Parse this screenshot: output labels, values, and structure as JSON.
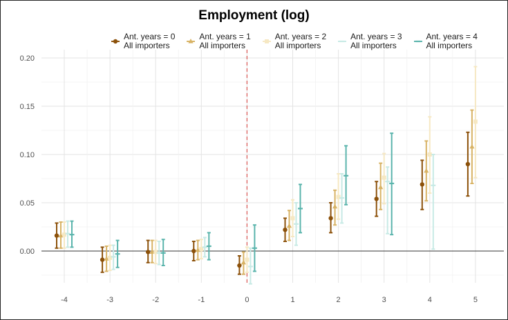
{
  "chart_data": {
    "type": "errorbar",
    "title": "Employment (log)",
    "xlabel": "",
    "ylabel": "",
    "x_ticks": [
      "-4",
      "-3",
      "-2",
      "-1",
      "0",
      "1",
      "2",
      "3",
      "4",
      "5"
    ],
    "y_ticks": [
      "0.00",
      "0.05",
      "0.10",
      "0.15",
      "0.20"
    ],
    "ylim": [
      -0.035,
      0.2
    ],
    "grid": true,
    "legend_position": "top",
    "reference_lines": {
      "horizontal_y": 0,
      "vertical_x": 0
    },
    "series": [
      {
        "name_line1": "Ant. years = 0",
        "name_line2": "All importers",
        "color": "#8c510a",
        "marker": "circle",
        "points": [
          {
            "x": -4,
            "y": 0.016,
            "lo": 0.003,
            "hi": 0.029
          },
          {
            "x": -3,
            "y": -0.009,
            "lo": -0.022,
            "hi": 0.004
          },
          {
            "x": -2,
            "y": -0.001,
            "lo": -0.012,
            "hi": 0.011
          },
          {
            "x": -1,
            "y": 0.0,
            "lo": -0.01,
            "hi": 0.01
          },
          {
            "x": 0,
            "y": -0.015,
            "lo": -0.024,
            "hi": -0.005
          },
          {
            "x": 1,
            "y": 0.022,
            "lo": 0.01,
            "hi": 0.034
          },
          {
            "x": 2,
            "y": 0.034,
            "lo": 0.019,
            "hi": 0.05
          },
          {
            "x": 3,
            "y": 0.054,
            "lo": 0.036,
            "hi": 0.072
          },
          {
            "x": 4,
            "y": 0.069,
            "lo": 0.043,
            "hi": 0.094
          },
          {
            "x": 5,
            "y": 0.09,
            "lo": 0.057,
            "hi": 0.123
          }
        ]
      },
      {
        "name_line1": "Ant. years = 1",
        "name_line2": "All importers",
        "color": "#d8b365",
        "marker": "triangle",
        "points": [
          {
            "x": -4,
            "y": 0.016,
            "lo": 0.003,
            "hi": 0.03
          },
          {
            "x": -3,
            "y": -0.008,
            "lo": -0.021,
            "hi": 0.005
          },
          {
            "x": -2,
            "y": -0.001,
            "lo": -0.012,
            "hi": 0.011
          },
          {
            "x": -1,
            "y": 0.001,
            "lo": -0.009,
            "hi": 0.011
          },
          {
            "x": 0,
            "y": -0.012,
            "lo": -0.024,
            "hi": -0.001
          },
          {
            "x": 1,
            "y": 0.026,
            "lo": 0.011,
            "hi": 0.042
          },
          {
            "x": 2,
            "y": 0.046,
            "lo": 0.027,
            "hi": 0.063
          },
          {
            "x": 3,
            "y": 0.066,
            "lo": 0.043,
            "hi": 0.091
          },
          {
            "x": 4,
            "y": 0.083,
            "lo": 0.052,
            "hi": 0.114
          },
          {
            "x": 5,
            "y": 0.108,
            "lo": 0.07,
            "hi": 0.146
          }
        ]
      },
      {
        "name_line1": "Ant. years = 2",
        "name_line2": "All importers",
        "color": "#f6e8c3",
        "marker": "square",
        "points": [
          {
            "x": -4,
            "y": 0.017,
            "lo": 0.003,
            "hi": 0.03
          },
          {
            "x": -3,
            "y": -0.007,
            "lo": -0.02,
            "hi": 0.006
          },
          {
            "x": -2,
            "y": -0.001,
            "lo": -0.013,
            "hi": 0.011
          },
          {
            "x": -1,
            "y": 0.002,
            "lo": -0.008,
            "hi": 0.012
          },
          {
            "x": 0,
            "y": -0.009,
            "lo": -0.022,
            "hi": 0.004
          },
          {
            "x": 1,
            "y": 0.034,
            "lo": 0.015,
            "hi": 0.053
          },
          {
            "x": 2,
            "y": 0.056,
            "lo": 0.033,
            "hi": 0.08
          },
          {
            "x": 3,
            "y": 0.076,
            "lo": 0.049,
            "hi": 0.101
          },
          {
            "x": 4,
            "y": 0.1,
            "lo": 0.06,
            "hi": 0.139
          },
          {
            "x": 5,
            "y": 0.134,
            "lo": 0.076,
            "hi": 0.191
          }
        ]
      },
      {
        "name_line1": "Ant. years = 3",
        "name_line2": "All importers",
        "color": "#c7eae5",
        "marker": "dash",
        "points": [
          {
            "x": -4,
            "y": 0.018,
            "lo": 0.004,
            "hi": 0.031
          },
          {
            "x": -3,
            "y": -0.006,
            "lo": -0.019,
            "hi": 0.006
          },
          {
            "x": -2,
            "y": -0.002,
            "lo": -0.014,
            "hi": 0.01
          },
          {
            "x": -1,
            "y": 0.004,
            "lo": -0.006,
            "hi": 0.014
          },
          {
            "x": 0,
            "y": -0.016,
            "lo": -0.034,
            "hi": 0.003
          },
          {
            "x": 1,
            "y": 0.028,
            "lo": 0.006,
            "hi": 0.05
          },
          {
            "x": 2,
            "y": 0.055,
            "lo": 0.029,
            "hi": 0.08
          },
          {
            "x": 3,
            "y": 0.072,
            "lo": 0.018,
            "hi": 0.087
          },
          {
            "x": 4,
            "y": 0.068,
            "lo": 0.002,
            "hi": 0.1
          },
          {
            "x": 5,
            "y": null,
            "lo": null,
            "hi": null
          }
        ]
      },
      {
        "name_line1": "Ant. years = 4",
        "name_line2": "All importers",
        "color": "#5ab4ac",
        "marker": "dash",
        "points": [
          {
            "x": -4,
            "y": 0.017,
            "lo": 0.004,
            "hi": 0.031
          },
          {
            "x": -3,
            "y": -0.003,
            "lo": -0.017,
            "hi": 0.011
          },
          {
            "x": -2,
            "y": -0.002,
            "lo": -0.015,
            "hi": 0.012
          },
          {
            "x": -1,
            "y": 0.005,
            "lo": -0.009,
            "hi": 0.019
          },
          {
            "x": 0,
            "y": 0.003,
            "lo": -0.021,
            "hi": 0.027
          },
          {
            "x": 1,
            "y": 0.044,
            "lo": 0.019,
            "hi": 0.069
          },
          {
            "x": 2,
            "y": 0.078,
            "lo": 0.048,
            "hi": 0.109
          },
          {
            "x": 3,
            "y": 0.07,
            "lo": 0.017,
            "hi": 0.122
          },
          {
            "x": 4,
            "y": null,
            "lo": null,
            "hi": null
          },
          {
            "x": 5,
            "y": null,
            "lo": null,
            "hi": null
          }
        ]
      }
    ]
  }
}
